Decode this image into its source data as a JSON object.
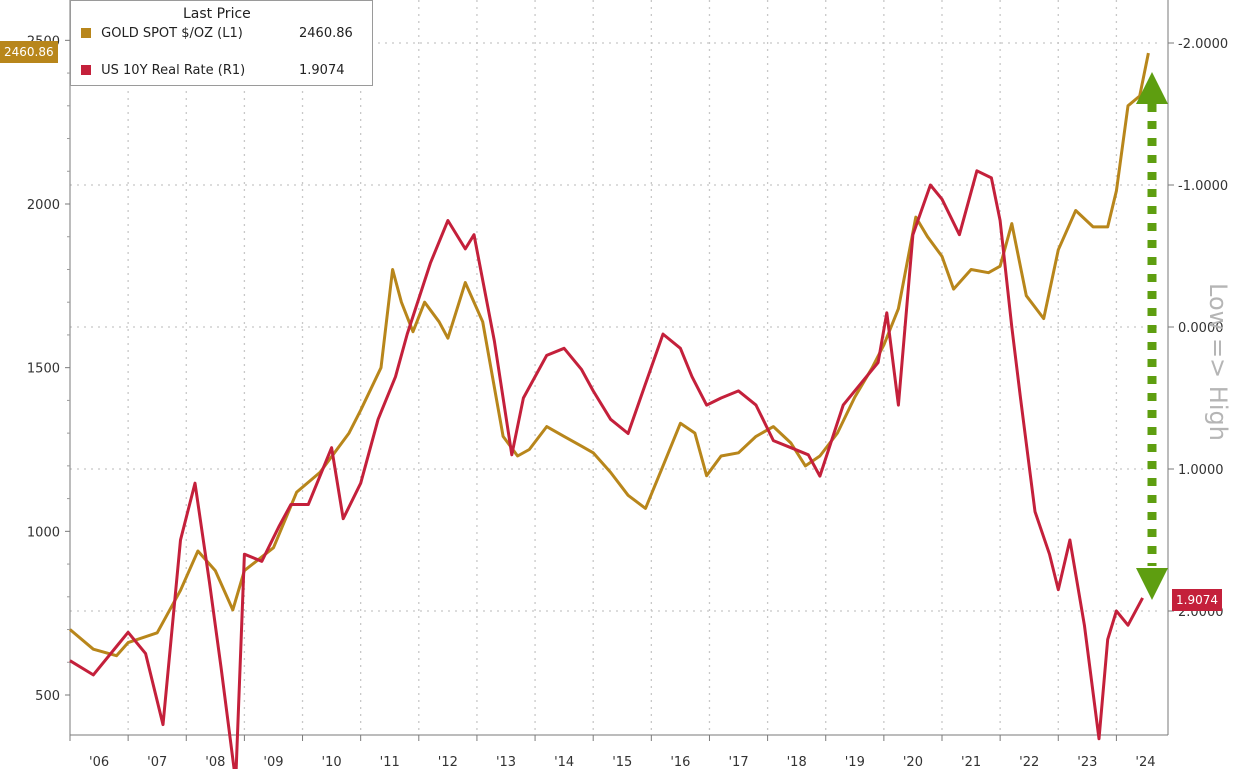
{
  "legend": {
    "header": "Last Price",
    "gold_label": "GOLD SPOT $/OZ  (L1)",
    "gold_value": "2460.86",
    "rate_label": "US 10Y Real Rate  (R1)",
    "rate_value": "1.9074"
  },
  "tags": {
    "gold_last": "2460.86",
    "rate_last": "1.9074"
  },
  "annotation": "Low => High",
  "colors": {
    "gold": "#b8861b",
    "rate": "#c4203b",
    "arrow": "#5e9e10",
    "grid": "#c8c8c8"
  },
  "chart_data": {
    "type": "line",
    "x_ticks": [
      "'06",
      "'07",
      "'08",
      "'09",
      "'10",
      "'11",
      "'12",
      "'13",
      "'14",
      "'15",
      "'16",
      "'17",
      "'18",
      "'19",
      "'20",
      "'21",
      "'22",
      "'23",
      "'24"
    ],
    "left_axis": {
      "ticks": [
        "500",
        "1000",
        "1500",
        "2000",
        "2500"
      ],
      "ylim": [
        400,
        2560
      ]
    },
    "right_axis": {
      "ticks": [
        "-2.0000",
        "-1.0000",
        "0.0000",
        "1.0000",
        "2.0000"
      ],
      "ylim": [
        -2.0,
        2.0
      ],
      "inverted": true
    },
    "series": [
      {
        "name": "GOLD SPOT $/OZ (L1)",
        "axis": "left",
        "x": [
          2006.0,
          2006.4,
          2006.8,
          2007.0,
          2007.5,
          2007.9,
          2008.2,
          2008.5,
          2008.8,
          2009.0,
          2009.5,
          2009.9,
          2010.3,
          2010.8,
          2011.0,
          2011.35,
          2011.55,
          2011.7,
          2011.9,
          2012.1,
          2012.35,
          2012.5,
          2012.8,
          2013.1,
          2013.45,
          2013.7,
          2013.9,
          2014.2,
          2014.5,
          2014.8,
          2015.0,
          2015.3,
          2015.6,
          2015.9,
          2016.2,
          2016.5,
          2016.75,
          2016.95,
          2017.2,
          2017.5,
          2017.8,
          2018.1,
          2018.4,
          2018.65,
          2018.9,
          2019.2,
          2019.5,
          2019.8,
          2020.0,
          2020.25,
          2020.55,
          2020.75,
          2021.0,
          2021.2,
          2021.5,
          2021.8,
          2022.0,
          2022.2,
          2022.45,
          2022.75,
          2023.0,
          2023.3,
          2023.6,
          2023.85,
          2024.0,
          2024.2,
          2024.4,
          2024.55
        ],
        "y": [
          700,
          640,
          620,
          660,
          690,
          820,
          940,
          880,
          760,
          880,
          950,
          1120,
          1180,
          1300,
          1370,
          1500,
          1800,
          1700,
          1610,
          1700,
          1640,
          1590,
          1760,
          1640,
          1290,
          1230,
          1250,
          1320,
          1290,
          1260,
          1240,
          1180,
          1110,
          1070,
          1200,
          1330,
          1300,
          1170,
          1230,
          1240,
          1290,
          1320,
          1270,
          1200,
          1230,
          1300,
          1410,
          1500,
          1570,
          1680,
          1960,
          1900,
          1840,
          1740,
          1800,
          1790,
          1810,
          1940,
          1720,
          1650,
          1860,
          1980,
          1930,
          1930,
          2040,
          2300,
          2330,
          2460.86
        ]
      },
      {
        "name": "US 10Y Real Rate (R1)",
        "axis": "right",
        "x": [
          2006.0,
          2006.4,
          2006.8,
          2007.0,
          2007.3,
          2007.6,
          2007.9,
          2008.15,
          2008.4,
          2008.6,
          2008.85,
          2009.0,
          2009.3,
          2009.6,
          2009.8,
          2010.1,
          2010.5,
          2010.7,
          2011.0,
          2011.3,
          2011.6,
          2011.8,
          2012.0,
          2012.2,
          2012.5,
          2012.8,
          2012.95,
          2013.3,
          2013.6,
          2013.8,
          2014.2,
          2014.5,
          2014.8,
          2015.0,
          2015.3,
          2015.6,
          2015.9,
          2016.2,
          2016.5,
          2016.7,
          2016.95,
          2017.2,
          2017.5,
          2017.8,
          2018.1,
          2018.4,
          2018.7,
          2018.9,
          2019.3,
          2019.6,
          2019.9,
          2020.05,
          2020.25,
          2020.5,
          2020.8,
          2021.0,
          2021.3,
          2021.6,
          2021.85,
          2022.0,
          2022.2,
          2022.35,
          2022.6,
          2022.85,
          2023.0,
          2023.2,
          2023.45,
          2023.7,
          2023.85,
          2024.0,
          2024.2,
          2024.45
        ],
        "y": [
          2.35,
          2.45,
          2.25,
          2.15,
          2.3,
          2.8,
          1.5,
          1.1,
          1.8,
          2.4,
          3.2,
          1.6,
          1.65,
          1.4,
          1.25,
          1.25,
          0.85,
          1.35,
          1.1,
          0.65,
          0.35,
          0.05,
          -0.2,
          -0.45,
          -0.75,
          -0.55,
          -0.65,
          0.1,
          0.9,
          0.5,
          0.2,
          0.15,
          0.3,
          0.45,
          0.65,
          0.75,
          0.4,
          0.05,
          0.15,
          0.35,
          0.55,
          0.5,
          0.45,
          0.55,
          0.8,
          0.85,
          0.9,
          1.05,
          0.55,
          0.4,
          0.25,
          -0.1,
          0.55,
          -0.65,
          -1.0,
          -0.9,
          -0.65,
          -1.1,
          -1.05,
          -0.75,
          0.0,
          0.5,
          1.3,
          1.6,
          1.85,
          1.5,
          2.1,
          2.9,
          2.2,
          2.0,
          2.1,
          1.9074
        ]
      }
    ]
  }
}
